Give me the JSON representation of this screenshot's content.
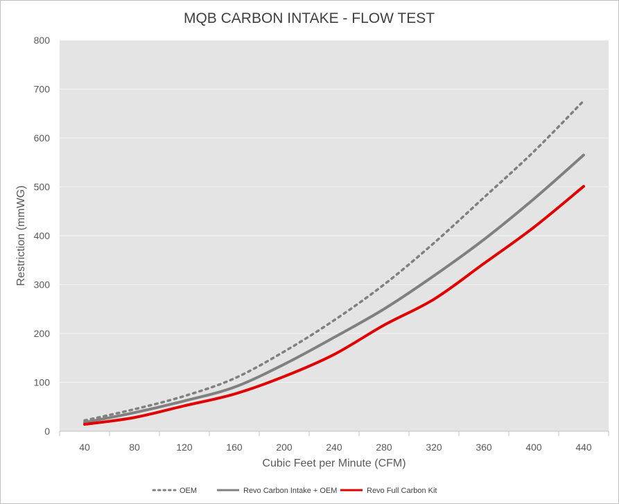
{
  "chart_data": {
    "type": "line",
    "title": "MQB CARBON INTAKE - FLOW TEST",
    "xlabel": "Cubic Feet per Minute (CFM)",
    "ylabel": "Restriction (mmWG)",
    "x": [
      40,
      80,
      120,
      160,
      200,
      240,
      280,
      320,
      360,
      400,
      440
    ],
    "xlim": [
      40,
      440
    ],
    "ylim": [
      0,
      800
    ],
    "yticks": [
      0,
      100,
      200,
      300,
      400,
      500,
      600,
      700,
      800
    ],
    "grid": "horizontal",
    "legend_position": "bottom",
    "plot_background": "#e4e4e4",
    "series": [
      {
        "name": "OEM",
        "color": "#808080",
        "style": "dotted",
        "values": [
          22,
          45,
          72,
          108,
          163,
          227,
          300,
          385,
          478,
          572,
          676
        ]
      },
      {
        "name": "Revo Carbon Intake + OEM",
        "color": "#808080",
        "style": "solid",
        "values": [
          18,
          38,
          62,
          90,
          137,
          192,
          250,
          318,
          392,
          475,
          565
        ]
      },
      {
        "name": "Revo Full Carbon Kit",
        "color": "#e00000",
        "style": "solid",
        "values": [
          14,
          28,
          52,
          76,
          112,
          157,
          217,
          270,
          343,
          417,
          501
        ]
      }
    ]
  }
}
